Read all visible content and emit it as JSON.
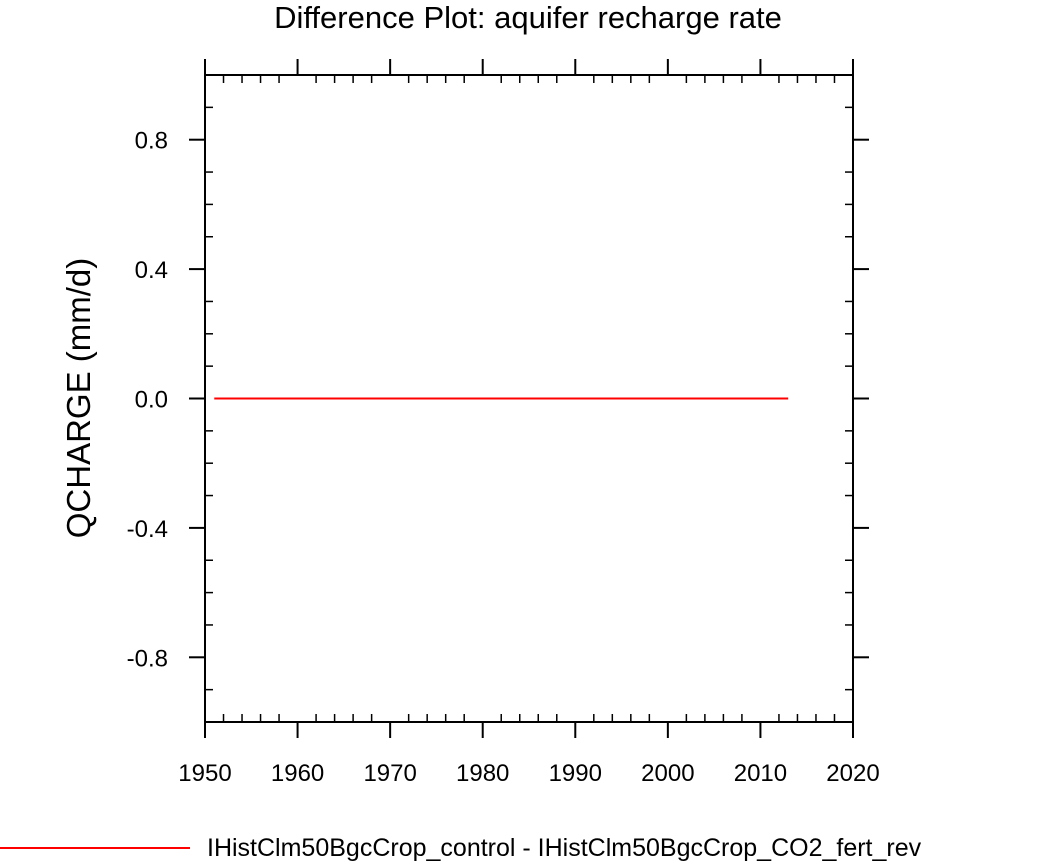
{
  "chart_data": {
    "type": "line",
    "title": "Difference Plot: aquifer recharge rate",
    "xlabel": "",
    "ylabel": "QCHARGE  (mm/d)",
    "xlim": [
      1950,
      2020
    ],
    "ylim": [
      -1.0,
      1.0
    ],
    "x_ticks": [
      1950,
      1960,
      1970,
      1980,
      1990,
      2000,
      2010,
      2020
    ],
    "x_tick_labels": [
      "1950",
      "1960",
      "1970",
      "1980",
      "1990",
      "2000",
      "2010",
      "2020"
    ],
    "y_ticks": [
      -0.8,
      -0.4,
      0.0,
      0.4,
      0.8
    ],
    "y_tick_labels": [
      "-0.8",
      "-0.4",
      "0.0",
      "0.4",
      "0.8"
    ],
    "grid": false,
    "legend_position": "bottom",
    "series": [
      {
        "name": "IHistClm50BgcCrop_control - IHistClm50BgcCrop_CO2_fert_rev",
        "color": "#ff0000",
        "x": [
          1951,
          2013
        ],
        "y": [
          0.0,
          0.0
        ]
      }
    ]
  }
}
